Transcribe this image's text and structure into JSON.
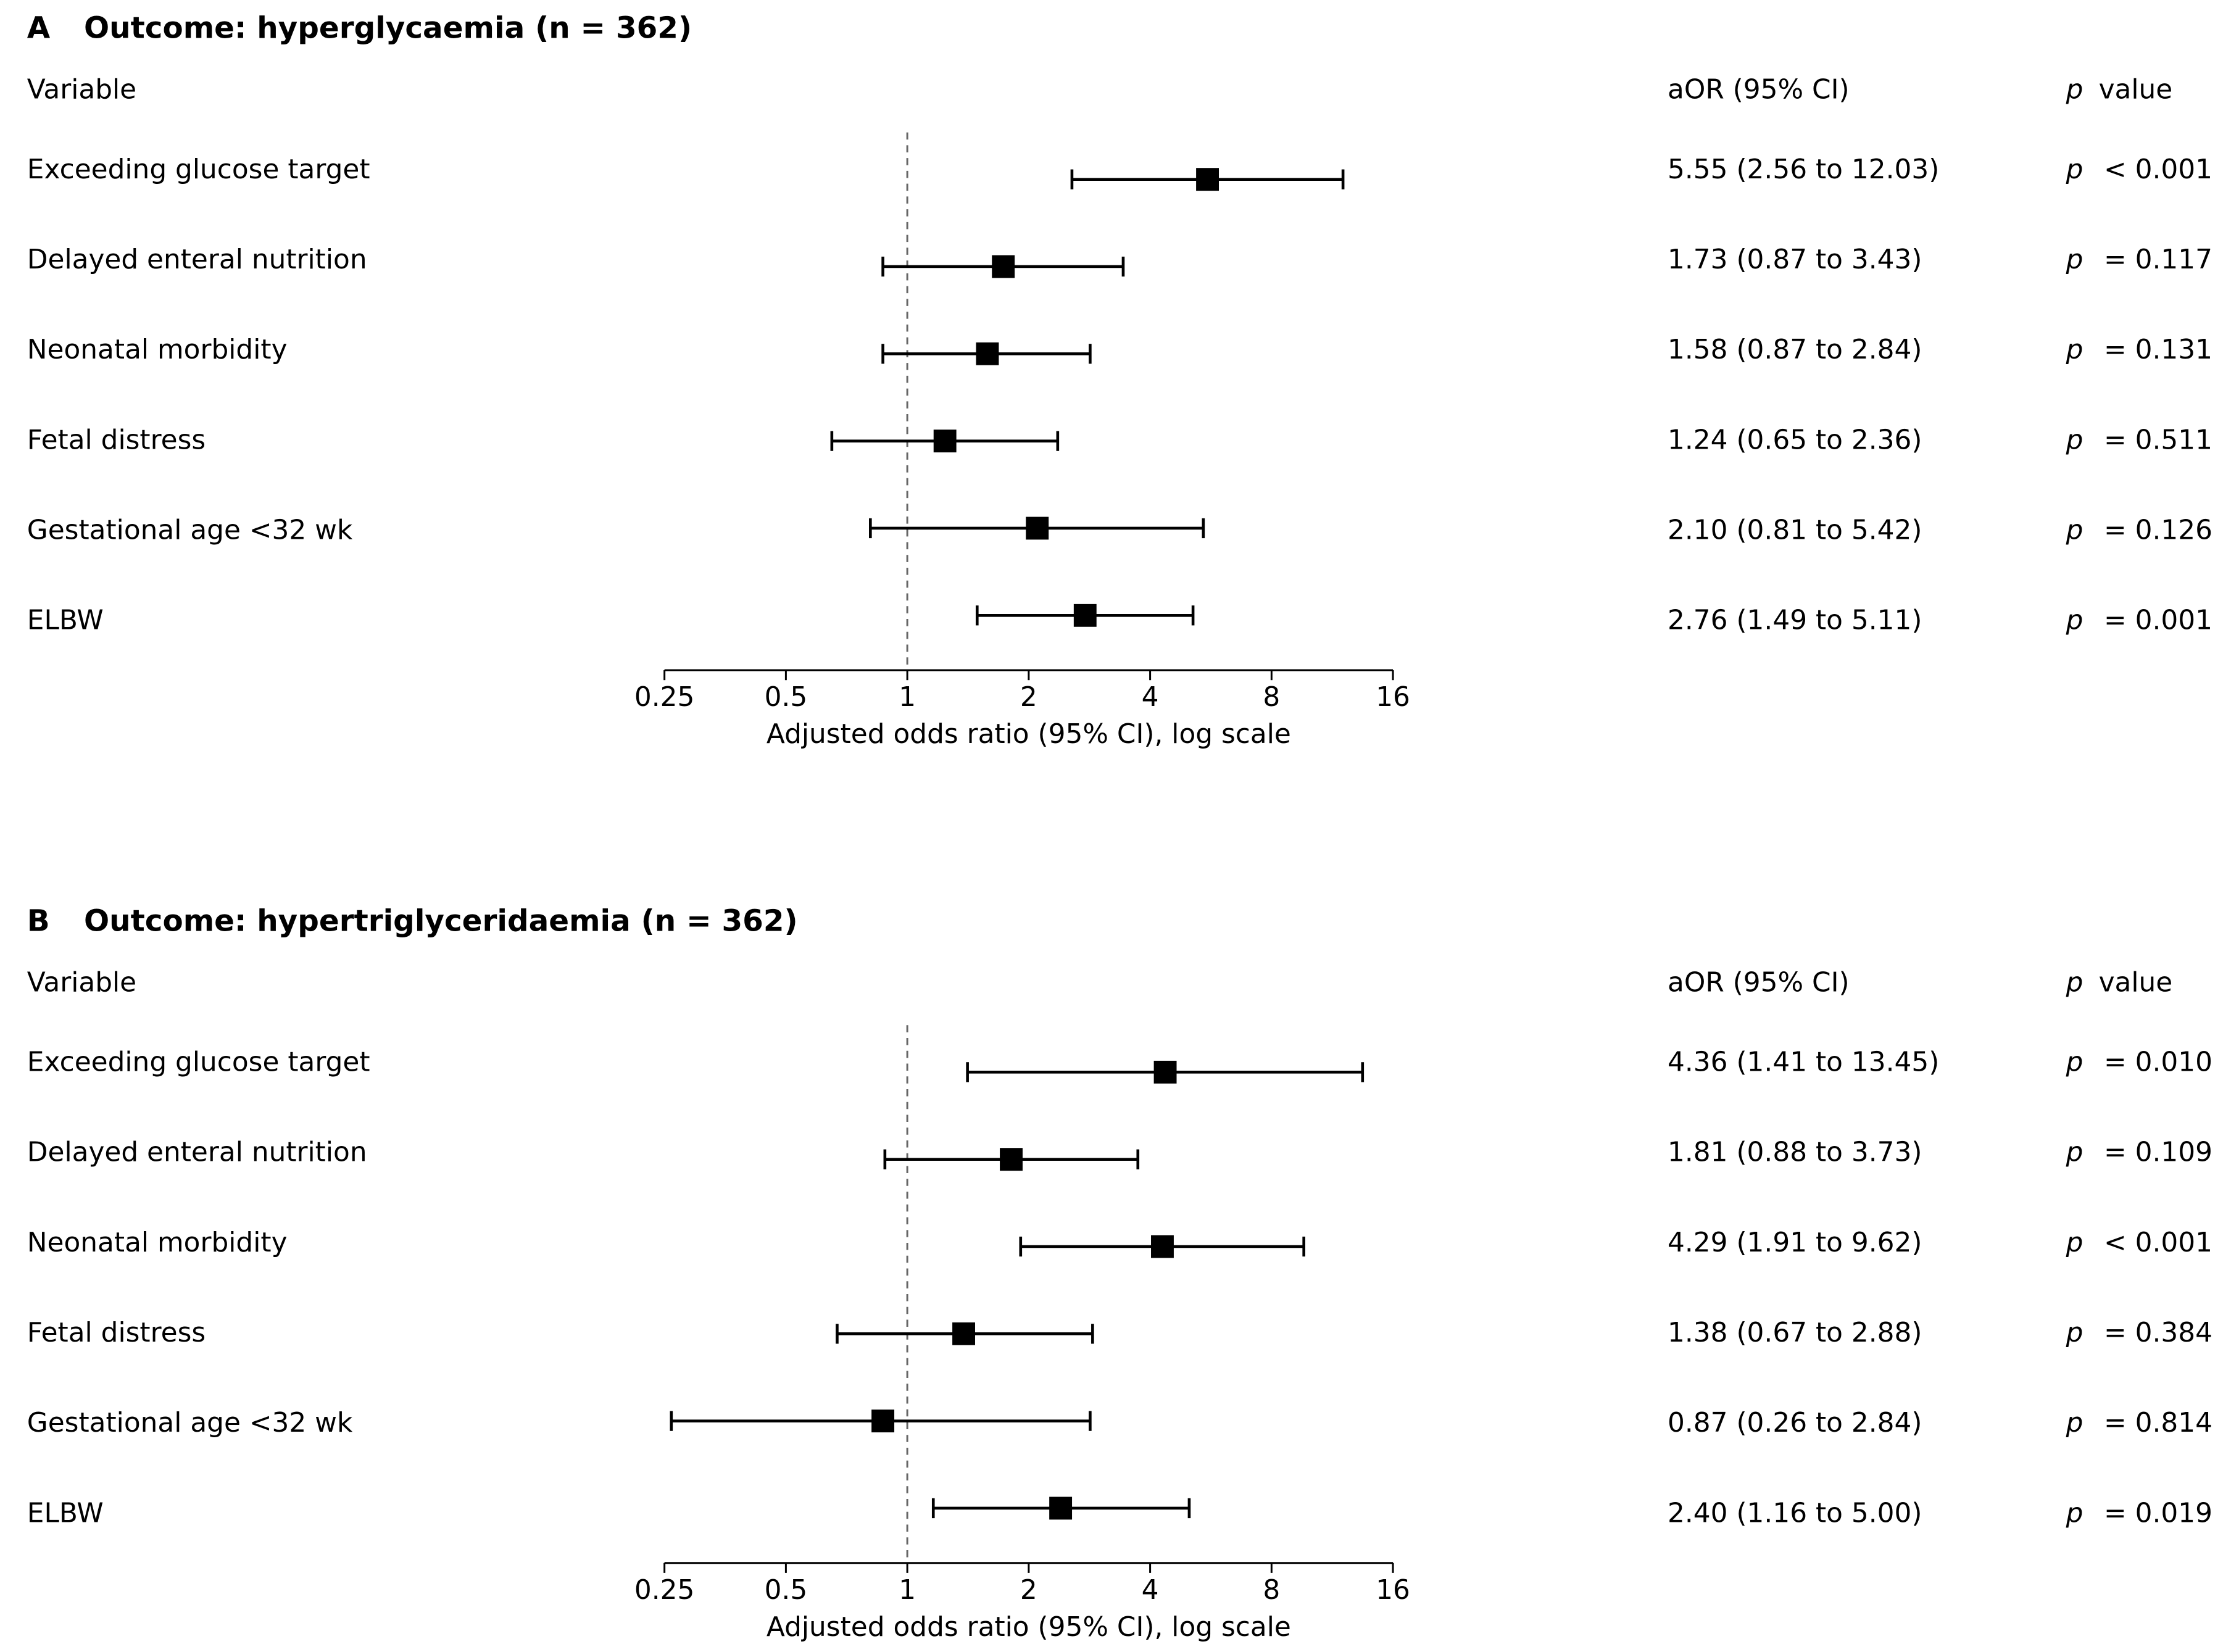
{
  "chart_data": [
    {
      "type": "forest",
      "panel": "A",
      "title": "Outcome: hyperglycaemia (n = 362)",
      "column_headers": {
        "variable": "Variable",
        "estimate": "aOR (95% CI)",
        "p_symbol": "p",
        "p": "value"
      },
      "categories": [
        "Exceeding glucose target",
        "Delayed enteral nutrition",
        "Neonatal morbidity",
        "Fetal distress",
        "Gestational age <32 wk",
        "ELBW"
      ],
      "values": [
        5.55,
        1.73,
        1.58,
        1.24,
        2.1,
        2.76
      ],
      "ci_low": [
        2.56,
        0.87,
        0.87,
        0.65,
        0.81,
        1.49
      ],
      "ci_high": [
        12.03,
        3.43,
        2.84,
        2.36,
        5.42,
        5.11
      ],
      "value_labels": [
        "5.55 (2.56 to 12.03)",
        "1.73 (0.87 to 3.43)",
        "1.58 (0.87 to 2.84)",
        "1.24 (0.65 to 2.36)",
        "2.10 (0.81 to 5.42)",
        "2.76 (1.49 to 5.11)"
      ],
      "p_values": [
        "< 0.001",
        "= 0.117",
        "= 0.131",
        "= 0.511",
        "= 0.126",
        "= 0.001"
      ],
      "xlabel": "Adjusted odds ratio (95% CI), log scale",
      "xscale": "log",
      "xlim": [
        0.25,
        16
      ],
      "xticks": [
        0.25,
        0.5,
        1,
        2,
        4,
        8,
        16
      ],
      "reference_line": 1,
      "color": "#000000"
    },
    {
      "type": "forest",
      "panel": "B",
      "title": "Outcome: hypertriglyceridaemia (n = 362)",
      "column_headers": {
        "variable": "Variable",
        "estimate": "aOR (95% CI)",
        "p_symbol": "p",
        "p": "value"
      },
      "categories": [
        "Exceeding glucose target",
        "Delayed enteral nutrition",
        "Neonatal morbidity",
        "Fetal distress",
        "Gestational age <32 wk",
        "ELBW"
      ],
      "values": [
        4.36,
        1.81,
        4.29,
        1.38,
        0.87,
        2.4
      ],
      "ci_low": [
        1.41,
        0.88,
        1.91,
        0.67,
        0.26,
        1.16
      ],
      "ci_high": [
        13.45,
        3.73,
        9.62,
        2.88,
        2.84,
        5.0
      ],
      "value_labels": [
        "4.36 (1.41 to 13.45)",
        "1.81 (0.88 to 3.73)",
        "4.29 (1.91 to 9.62)",
        "1.38 (0.67 to 2.88)",
        "0.87 (0.26 to 2.84)",
        "2.40 (1.16 to 5.00)"
      ],
      "p_values": [
        "= 0.010",
        "= 0.109",
        "< 0.001",
        "= 0.384",
        "= 0.814",
        "= 0.019"
      ],
      "xlabel": "Adjusted odds ratio (95% CI), log scale",
      "xscale": "log",
      "xlim": [
        0.25,
        16
      ],
      "xticks": [
        0.25,
        0.5,
        1,
        2,
        4,
        8,
        16
      ],
      "reference_line": 1,
      "color": "#000000"
    }
  ]
}
